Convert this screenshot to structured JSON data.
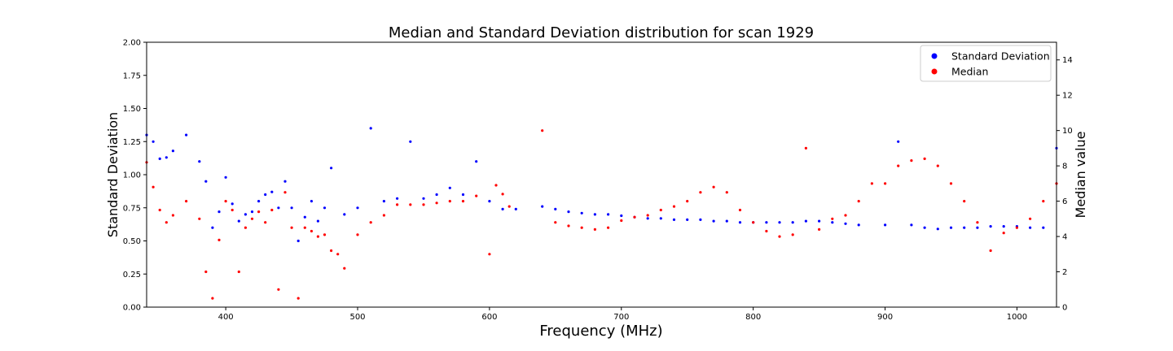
{
  "chart_data": {
    "type": "scatter",
    "title": "Median and Standard Deviation distribution for scan 1929",
    "xlabel": "Frequency (MHz)",
    "ylabel": "Standard Deviation",
    "y2label": "Median value",
    "xlim": [
      340,
      1030
    ],
    "ylim": [
      0,
      2
    ],
    "y2lim": [
      0,
      15
    ],
    "xticks": [
      400,
      500,
      600,
      700,
      800,
      900,
      1000
    ],
    "yticks": [
      "0.00",
      "0.25",
      "0.50",
      "0.75",
      "1.00",
      "1.25",
      "1.50",
      "1.75",
      "2.00"
    ],
    "y2ticks": [
      0,
      2,
      4,
      6,
      8,
      10,
      12,
      14
    ],
    "grid": false,
    "legend_position": "top-right",
    "series": [
      {
        "name": "Standard Deviation",
        "axis": "left",
        "color": "#0000ff",
        "x": [
          340,
          345,
          350,
          355,
          360,
          370,
          380,
          385,
          390,
          395,
          400,
          405,
          410,
          415,
          420,
          425,
          430,
          435,
          440,
          445,
          450,
          455,
          460,
          465,
          470,
          475,
          480,
          490,
          500,
          510,
          520,
          530,
          540,
          550,
          560,
          570,
          580,
          590,
          600,
          610,
          620,
          640,
          650,
          660,
          670,
          680,
          690,
          700,
          710,
          720,
          730,
          740,
          750,
          760,
          770,
          780,
          790,
          800,
          810,
          820,
          830,
          840,
          850,
          860,
          870,
          880,
          900,
          910,
          920,
          930,
          940,
          950,
          960,
          970,
          980,
          990,
          1000,
          1010,
          1020,
          1030
        ],
        "y": [
          1.3,
          1.25,
          1.12,
          1.13,
          1.18,
          1.3,
          1.1,
          0.95,
          0.6,
          0.72,
          0.98,
          0.78,
          0.65,
          0.7,
          0.72,
          0.8,
          0.85,
          0.87,
          0.75,
          0.95,
          0.75,
          0.5,
          0.68,
          0.8,
          0.65,
          0.75,
          1.05,
          0.7,
          0.75,
          1.35,
          0.8,
          0.82,
          1.25,
          0.82,
          0.85,
          0.9,
          0.85,
          1.1,
          0.8,
          0.74,
          0.74,
          0.76,
          0.74,
          0.72,
          0.71,
          0.7,
          0.7,
          0.69,
          0.68,
          0.67,
          0.67,
          0.66,
          0.66,
          0.66,
          0.65,
          0.65,
          0.64,
          0.64,
          0.64,
          0.64,
          0.64,
          0.65,
          0.65,
          0.64,
          0.63,
          0.62,
          0.62,
          1.25,
          0.62,
          0.6,
          0.59,
          0.6,
          0.6,
          0.6,
          0.61,
          0.61,
          0.61,
          0.6,
          0.6,
          1.2
        ]
      },
      {
        "name": "Median",
        "axis": "right",
        "color": "#ff0000",
        "x": [
          340,
          345,
          350,
          355,
          360,
          370,
          380,
          385,
          390,
          395,
          400,
          405,
          410,
          415,
          420,
          425,
          430,
          435,
          440,
          445,
          450,
          455,
          460,
          465,
          470,
          475,
          480,
          485,
          490,
          500,
          510,
          520,
          530,
          540,
          550,
          560,
          570,
          580,
          590,
          600,
          605,
          610,
          615,
          640,
          650,
          660,
          670,
          680,
          690,
          700,
          710,
          720,
          730,
          740,
          750,
          760,
          770,
          780,
          790,
          800,
          810,
          820,
          830,
          840,
          850,
          860,
          870,
          880,
          890,
          900,
          910,
          920,
          930,
          940,
          950,
          960,
          970,
          980,
          990,
          1000,
          1010,
          1020,
          1030
        ],
        "y": [
          8.2,
          6.8,
          5.5,
          4.8,
          5.2,
          6.0,
          5.0,
          2.0,
          0.5,
          3.8,
          6.0,
          5.5,
          2.0,
          4.5,
          5.0,
          5.4,
          4.8,
          5.5,
          1.0,
          6.5,
          4.5,
          0.5,
          4.5,
          4.3,
          4.0,
          4.1,
          3.2,
          3.0,
          2.2,
          4.1,
          4.8,
          5.2,
          5.8,
          5.8,
          5.8,
          5.9,
          6.0,
          6.0,
          6.3,
          3.0,
          6.9,
          6.4,
          5.7,
          10.0,
          4.8,
          4.6,
          4.5,
          4.4,
          4.5,
          4.9,
          5.1,
          5.2,
          5.5,
          5.7,
          6.0,
          6.5,
          6.8,
          6.5,
          5.5,
          4.8,
          4.3,
          4.0,
          4.1,
          9.0,
          4.4,
          5.0,
          5.2,
          6.0,
          7.0,
          7.0,
          8.0,
          8.3,
          8.4,
          8.0,
          7.0,
          6.0,
          4.8,
          3.2,
          4.2,
          4.5,
          5.0,
          6.0,
          7.0
        ]
      }
    ]
  }
}
